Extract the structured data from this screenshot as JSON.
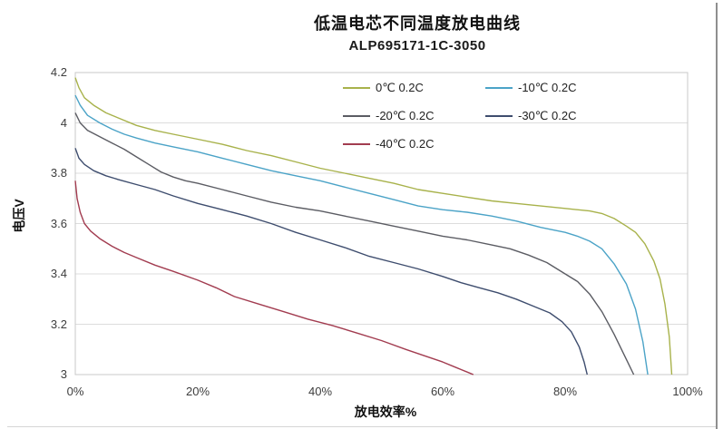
{
  "chart_data": {
    "type": "line",
    "title": "低温电芯不同温度放电曲线",
    "subtitle": "ALP695171-1C-3050",
    "xlabel": "放电效率%",
    "ylabel": "电压V",
    "xlim": [
      0,
      100
    ],
    "ylim": [
      3.0,
      4.2
    ],
    "grid": "horizontal-only",
    "grid_color": "#dcdcdc",
    "border_color": "#c8c8c8",
    "legend_position": "top-inside-two-columns",
    "x_ticks": [
      {
        "value": 0,
        "label": "0%"
      },
      {
        "value": 20,
        "label": "20%"
      },
      {
        "value": 40,
        "label": "40%"
      },
      {
        "value": 60,
        "label": "60%"
      },
      {
        "value": 80,
        "label": "80%"
      },
      {
        "value": 100,
        "label": "100%"
      }
    ],
    "y_ticks": [
      {
        "value": 4.2,
        "label": "4.2"
      },
      {
        "value": 4.0,
        "label": "4"
      },
      {
        "value": 3.8,
        "label": "3.8"
      },
      {
        "value": 3.6,
        "label": "3.6"
      },
      {
        "value": 3.4,
        "label": "3.4"
      },
      {
        "value": 3.2,
        "label": "3.2"
      },
      {
        "value": 3.0,
        "label": "3"
      }
    ],
    "series": [
      {
        "name": "0℃ 0.2C",
        "color": "#a8b24b",
        "points": [
          [
            0,
            4.18
          ],
          [
            0.6,
            4.14
          ],
          [
            1.5,
            4.1
          ],
          [
            3,
            4.07
          ],
          [
            5,
            4.04
          ],
          [
            7,
            4.02
          ],
          [
            10,
            3.99
          ],
          [
            13,
            3.97
          ],
          [
            16,
            3.955
          ],
          [
            20,
            3.935
          ],
          [
            24,
            3.915
          ],
          [
            28,
            3.89
          ],
          [
            32,
            3.87
          ],
          [
            36,
            3.845
          ],
          [
            40,
            3.82
          ],
          [
            44,
            3.8
          ],
          [
            48,
            3.78
          ],
          [
            52,
            3.76
          ],
          [
            56,
            3.735
          ],
          [
            60,
            3.72
          ],
          [
            64,
            3.705
          ],
          [
            68,
            3.69
          ],
          [
            72,
            3.68
          ],
          [
            76,
            3.67
          ],
          [
            80,
            3.66
          ],
          [
            84,
            3.65
          ],
          [
            86,
            3.64
          ],
          [
            88,
            3.62
          ],
          [
            90,
            3.59
          ],
          [
            91.5,
            3.565
          ],
          [
            93,
            3.52
          ],
          [
            94.5,
            3.45
          ],
          [
            95.5,
            3.38
          ],
          [
            96.3,
            3.28
          ],
          [
            97,
            3.15
          ],
          [
            97.4,
            3.0
          ]
        ]
      },
      {
        "name": "-10℃ 0.2C",
        "color": "#4ba3c7",
        "points": [
          [
            0,
            4.11
          ],
          [
            0.8,
            4.07
          ],
          [
            2,
            4.03
          ],
          [
            4,
            4.0
          ],
          [
            6,
            3.975
          ],
          [
            8,
            3.955
          ],
          [
            10,
            3.94
          ],
          [
            13,
            3.92
          ],
          [
            16,
            3.905
          ],
          [
            20,
            3.885
          ],
          [
            24,
            3.86
          ],
          [
            28,
            3.835
          ],
          [
            32,
            3.81
          ],
          [
            36,
            3.79
          ],
          [
            40,
            3.77
          ],
          [
            44,
            3.745
          ],
          [
            48,
            3.72
          ],
          [
            52,
            3.695
          ],
          [
            56,
            3.67
          ],
          [
            60,
            3.655
          ],
          [
            64,
            3.645
          ],
          [
            68,
            3.63
          ],
          [
            72,
            3.61
          ],
          [
            76,
            3.585
          ],
          [
            80,
            3.565
          ],
          [
            82,
            3.55
          ],
          [
            84,
            3.53
          ],
          [
            86,
            3.5
          ],
          [
            88,
            3.44
          ],
          [
            90,
            3.36
          ],
          [
            91.5,
            3.26
          ],
          [
            92.7,
            3.13
          ],
          [
            93.5,
            3.0
          ]
        ]
      },
      {
        "name": "-20℃ 0.2C",
        "color": "#5b5c63",
        "points": [
          [
            0,
            4.04
          ],
          [
            0.8,
            4.0
          ],
          [
            2,
            3.97
          ],
          [
            4,
            3.945
          ],
          [
            6,
            3.92
          ],
          [
            8,
            3.895
          ],
          [
            10,
            3.865
          ],
          [
            12,
            3.835
          ],
          [
            14,
            3.805
          ],
          [
            16,
            3.785
          ],
          [
            18,
            3.77
          ],
          [
            20,
            3.76
          ],
          [
            24,
            3.735
          ],
          [
            28,
            3.71
          ],
          [
            32,
            3.685
          ],
          [
            36,
            3.665
          ],
          [
            40,
            3.65
          ],
          [
            44,
            3.63
          ],
          [
            48,
            3.61
          ],
          [
            52,
            3.59
          ],
          [
            56,
            3.57
          ],
          [
            60,
            3.55
          ],
          [
            64,
            3.535
          ],
          [
            68,
            3.515
          ],
          [
            71,
            3.5
          ],
          [
            74,
            3.475
          ],
          [
            77,
            3.445
          ],
          [
            80,
            3.4
          ],
          [
            82,
            3.37
          ],
          [
            84,
            3.32
          ],
          [
            86,
            3.25
          ],
          [
            88,
            3.16
          ],
          [
            90,
            3.06
          ],
          [
            91.2,
            3.0
          ]
        ]
      },
      {
        "name": "-30℃ 0.2C",
        "color": "#3e4d6e",
        "points": [
          [
            0,
            3.9
          ],
          [
            0.6,
            3.86
          ],
          [
            1.5,
            3.835
          ],
          [
            3,
            3.81
          ],
          [
            5,
            3.79
          ],
          [
            7,
            3.775
          ],
          [
            10,
            3.755
          ],
          [
            13,
            3.735
          ],
          [
            16,
            3.71
          ],
          [
            20,
            3.68
          ],
          [
            24,
            3.655
          ],
          [
            28,
            3.63
          ],
          [
            32,
            3.6
          ],
          [
            36,
            3.565
          ],
          [
            40,
            3.535
          ],
          [
            44,
            3.505
          ],
          [
            48,
            3.47
          ],
          [
            52,
            3.445
          ],
          [
            56,
            3.42
          ],
          [
            60,
            3.39
          ],
          [
            63,
            3.365
          ],
          [
            66,
            3.345
          ],
          [
            69,
            3.325
          ],
          [
            72,
            3.3
          ],
          [
            75,
            3.27
          ],
          [
            77.5,
            3.245
          ],
          [
            79.5,
            3.21
          ],
          [
            81,
            3.17
          ],
          [
            82.3,
            3.11
          ],
          [
            83.1,
            3.05
          ],
          [
            83.6,
            3.0
          ]
        ]
      },
      {
        "name": "-40℃ 0.2C",
        "color": "#a23c50",
        "points": [
          [
            0,
            3.77
          ],
          [
            0.3,
            3.7
          ],
          [
            0.8,
            3.645
          ],
          [
            1.5,
            3.6
          ],
          [
            2.5,
            3.57
          ],
          [
            4,
            3.54
          ],
          [
            6,
            3.51
          ],
          [
            8,
            3.485
          ],
          [
            10,
            3.465
          ],
          [
            13,
            3.435
          ],
          [
            16,
            3.41
          ],
          [
            20,
            3.375
          ],
          [
            23,
            3.345
          ],
          [
            26,
            3.31
          ],
          [
            30,
            3.28
          ],
          [
            34,
            3.25
          ],
          [
            38,
            3.22
          ],
          [
            42,
            3.195
          ],
          [
            46,
            3.165
          ],
          [
            50,
            3.135
          ],
          [
            54,
            3.1
          ],
          [
            57,
            3.075
          ],
          [
            60,
            3.05
          ],
          [
            62,
            3.03
          ],
          [
            64,
            3.01
          ],
          [
            65,
            3.0
          ]
        ]
      }
    ]
  }
}
